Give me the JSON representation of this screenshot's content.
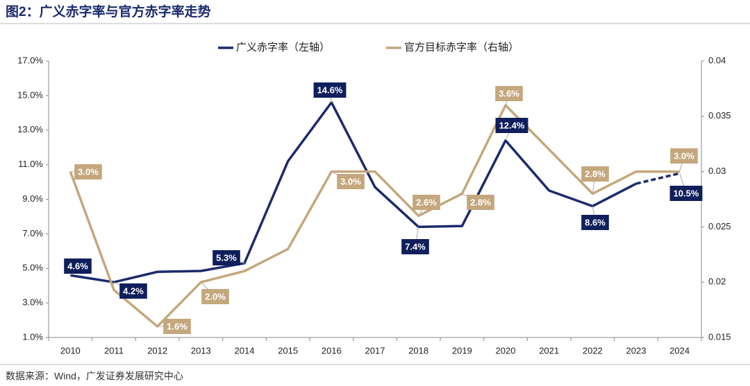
{
  "chart_data": {
    "type": "line",
    "title": "图2：广义赤字率与官方赤字率走势",
    "source": "数据来源：Wind，广发证券发展研究中心",
    "categories": [
      "2010",
      "2011",
      "2012",
      "2013",
      "2014",
      "2015",
      "2016",
      "2017",
      "2018",
      "2019",
      "2020",
      "2021",
      "2022",
      "2023",
      "2024"
    ],
    "ylim": [
      1,
      17
    ],
    "yticks": [
      {
        "value": 1,
        "label": "1.0%"
      },
      {
        "value": 3,
        "label": "3.0%"
      },
      {
        "value": 5,
        "label": "5.0%"
      },
      {
        "value": 7,
        "label": "7.0%"
      },
      {
        "value": 9,
        "label": "9.0%"
      },
      {
        "value": 11,
        "label": "11.0%"
      },
      {
        "value": 13,
        "label": "13.0%"
      },
      {
        "value": 15,
        "label": "15.0%"
      },
      {
        "value": 17,
        "label": "17.0%"
      }
    ],
    "y2lim": [
      0.015,
      0.04
    ],
    "y2ticks": [
      0.015,
      0.02,
      0.025,
      0.03,
      0.035,
      0.04
    ],
    "series": [
      {
        "name": "广义赤字率（左轴）",
        "color": "#1a2a6c",
        "dash_from": "2023",
        "values": [
          4.6,
          4.2,
          4.8,
          4.85,
          5.3,
          11.2,
          14.6,
          9.7,
          7.4,
          7.45,
          12.4,
          9.5,
          8.6,
          9.9,
          10.5
        ],
        "value_labels": [
          "4.6%",
          "4.2%",
          null,
          null,
          "5.3%",
          null,
          "14.6%",
          null,
          "7.4%",
          null,
          "12.4%",
          null,
          "8.6%",
          null,
          "10.5%"
        ]
      },
      {
        "name": "官方目标赤字率（右轴）",
        "color": "#c4a77d",
        "axis": "y2",
        "values": [
          0.03,
          0.0193,
          0.016,
          0.02,
          0.021,
          0.023,
          0.03,
          0.03,
          0.026,
          0.028,
          0.036,
          0.032,
          0.028,
          0.03,
          0.03
        ],
        "value_labels": [
          "3.0%",
          null,
          "1.6%",
          "2.0%",
          null,
          null,
          "3.0%",
          null,
          "2.6%",
          "2.8%",
          "3.6%",
          null,
          "2.8%",
          null,
          "3.0%"
        ]
      }
    ]
  }
}
